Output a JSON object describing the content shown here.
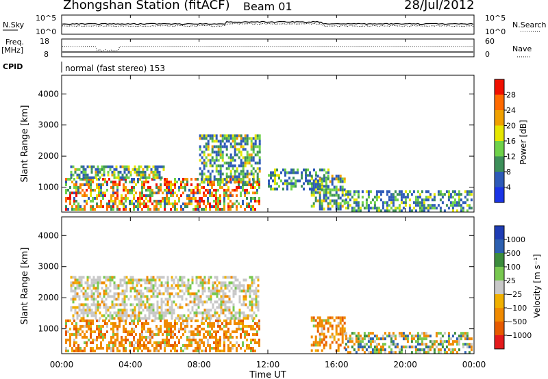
{
  "header": {
    "title": "Zhongshan Station (fitACF)",
    "beam": "Beam 01",
    "date": "28/Jul/2012"
  },
  "colors": {
    "power_scale": [
      "#1a34e6",
      "#2e5ab8",
      "#3d8f5a",
      "#6fd24a",
      "#e6e600",
      "#f0a000",
      "#ff6a00",
      "#f01000"
    ],
    "velocity_scale": [
      "#e41a1c",
      "#e65a00",
      "#f08a00",
      "#f0b000",
      "#c8c8c8",
      "#78c850",
      "#3c8c3c",
      "#2d60b0",
      "#1e3cb4"
    ]
  },
  "panels": {
    "nsky": {
      "left_label": "N.Sky",
      "right_label": "N.Search",
      "left_ticks": [
        "10^5",
        "10^0"
      ],
      "right_ticks": [
        "10^5",
        "10^0"
      ]
    },
    "freq": {
      "left_label": "Freq.",
      "left_unit": "[MHz]",
      "right_label": "Nave",
      "left_ticks": [
        "18",
        "8"
      ],
      "right_ticks": [
        "60",
        "0"
      ]
    },
    "cpid": {
      "label": "CPID",
      "value": "normal (fast stereo) 153"
    }
  },
  "chart_data": [
    {
      "type": "heatmap",
      "name": "power",
      "ylabel": "Slant Range [km]",
      "ylim": [
        200,
        4600
      ],
      "yticks": [
        "1000",
        "2000",
        "3000",
        "4000"
      ],
      "xlim": [
        0,
        24
      ],
      "colorbar": {
        "label": "Power [dB]",
        "ticks": [
          "4",
          "8",
          "12",
          "16",
          "20",
          "24",
          "28"
        ],
        "range": [
          0,
          32
        ]
      },
      "echo_bands": [
        {
          "x": [
            0.2,
            11.5
          ],
          "range_km": [
            300,
            1300
          ],
          "level": "high"
        },
        {
          "x": [
            0.5,
            6
          ],
          "range_km": [
            1300,
            1700
          ],
          "level": "medium"
        },
        {
          "x": [
            8,
            11.5
          ],
          "range_km": [
            1200,
            2700
          ],
          "level": "medium"
        },
        {
          "x": [
            12,
            15.5
          ],
          "range_km": [
            900,
            1600
          ],
          "level": "low"
        },
        {
          "x": [
            14.5,
            16.5
          ],
          "range_km": [
            300,
            1400
          ],
          "level": "medium"
        },
        {
          "x": [
            16.5,
            23.8
          ],
          "range_km": [
            200,
            900
          ],
          "level": "low"
        }
      ]
    },
    {
      "type": "heatmap",
      "name": "velocity",
      "ylabel": "Slant Range [km]",
      "xlabel": "Time UT",
      "ylim": [
        200,
        4600
      ],
      "yticks": [
        "1000",
        "2000",
        "3000",
        "4000"
      ],
      "xticks": [
        "00:00",
        "04:00",
        "08:00",
        "12:00",
        "16:00",
        "20:00",
        "00:00"
      ],
      "xlim": [
        0,
        24
      ],
      "colorbar": {
        "label": "Velocity [m s⁻¹]",
        "ticks": [
          "1000",
          "500",
          "100",
          "25",
          "−25",
          "−100",
          "−500",
          "−1000"
        ]
      },
      "echo_bands": [
        {
          "x": [
            0.2,
            11.5
          ],
          "range_km": [
            300,
            1300
          ],
          "velocity": "negative"
        },
        {
          "x": [
            0.5,
            11.5
          ],
          "range_km": [
            1300,
            2700
          ],
          "velocity": "near zero"
        },
        {
          "x": [
            14.5,
            16.5
          ],
          "range_km": [
            300,
            1400
          ],
          "velocity": "negative"
        },
        {
          "x": [
            16.5,
            23.8
          ],
          "range_km": [
            200,
            900
          ],
          "velocity": "mixed"
        }
      ]
    }
  ]
}
